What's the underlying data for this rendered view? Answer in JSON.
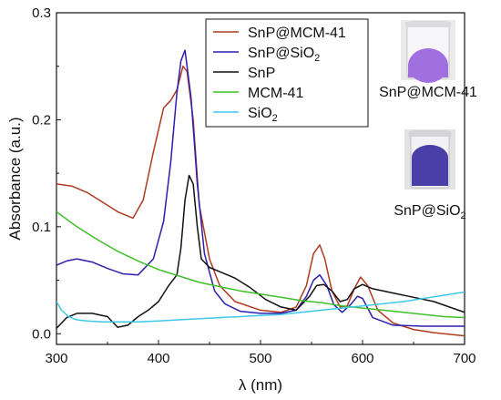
{
  "chart_data": {
    "type": "line",
    "xlabel_main": "λ",
    "xlabel_unit": " (nm)",
    "ylabel": "Absorbance (a.u.)",
    "xlim": [
      300,
      700
    ],
    "ylim": [
      -0.01,
      0.3
    ],
    "xticks": [
      300,
      400,
      500,
      600,
      700
    ],
    "yticks": [
      0.0,
      0.1,
      0.2,
      0.3
    ],
    "ytick_labels": [
      "0.0",
      "0.1",
      "0.2",
      "0.3"
    ],
    "legend_position": "top-center",
    "series": [
      {
        "name": "SnP@MCM-41",
        "name_base": "SnP@MCM-41",
        "name_sub": "",
        "color": "#b03a1e",
        "x": [
          300,
          315,
          330,
          345,
          360,
          375,
          385,
          395,
          405,
          412,
          418,
          424,
          428,
          434,
          440,
          450,
          460,
          475,
          500,
          520,
          535,
          545,
          552,
          558,
          563,
          570,
          578,
          585,
          592,
          598,
          605,
          615,
          630,
          650,
          670,
          700
        ],
        "y": [
          0.14,
          0.138,
          0.132,
          0.123,
          0.114,
          0.108,
          0.125,
          0.17,
          0.211,
          0.218,
          0.228,
          0.25,
          0.245,
          0.2,
          0.12,
          0.07,
          0.045,
          0.03,
          0.022,
          0.02,
          0.025,
          0.045,
          0.075,
          0.083,
          0.07,
          0.04,
          0.025,
          0.026,
          0.042,
          0.053,
          0.045,
          0.022,
          0.01,
          0.004,
          0.001,
          -0.002
        ]
      },
      {
        "name": "SnP@SiO2",
        "name_base": "SnP@SiO",
        "name_sub": "2",
        "color": "#2a1fb0",
        "x": [
          300,
          310,
          320,
          335,
          350,
          365,
          380,
          395,
          405,
          412,
          418,
          422,
          426,
          432,
          438,
          445,
          455,
          465,
          480,
          500,
          520,
          535,
          545,
          552,
          558,
          565,
          572,
          580,
          588,
          595,
          600,
          610,
          630,
          660,
          700
        ],
        "y": [
          0.064,
          0.068,
          0.07,
          0.067,
          0.061,
          0.056,
          0.055,
          0.07,
          0.105,
          0.16,
          0.225,
          0.255,
          0.265,
          0.22,
          0.14,
          0.075,
          0.04,
          0.028,
          0.021,
          0.019,
          0.019,
          0.022,
          0.035,
          0.05,
          0.055,
          0.045,
          0.027,
          0.02,
          0.027,
          0.035,
          0.033,
          0.015,
          0.008,
          0.007,
          0.007
        ]
      },
      {
        "name": "SnP",
        "name_base": "SnP",
        "name_sub": "",
        "color": "#111111",
        "x": [
          300,
          310,
          320,
          335,
          350,
          360,
          370,
          380,
          390,
          400,
          410,
          418,
          422,
          426,
          430,
          434,
          438,
          442,
          450,
          460,
          475,
          490,
          505,
          520,
          535,
          548,
          555,
          562,
          570,
          578,
          585,
          592,
          600,
          610,
          630,
          650,
          670,
          700
        ],
        "y": [
          0.005,
          0.015,
          0.019,
          0.019,
          0.016,
          0.006,
          0.008,
          0.016,
          0.022,
          0.03,
          0.045,
          0.055,
          0.08,
          0.125,
          0.148,
          0.14,
          0.1,
          0.07,
          0.062,
          0.058,
          0.052,
          0.043,
          0.032,
          0.025,
          0.022,
          0.035,
          0.045,
          0.046,
          0.04,
          0.03,
          0.032,
          0.042,
          0.046,
          0.042,
          0.038,
          0.034,
          0.03,
          0.02
        ]
      },
      {
        "name": "MCM-41",
        "name_base": "MCM-41",
        "name_sub": "",
        "color": "#3fbf2a",
        "x": [
          300,
          320,
          340,
          360,
          380,
          400,
          420,
          440,
          460,
          480,
          500,
          520,
          540,
          560,
          580,
          600,
          620,
          640,
          660,
          680,
          700
        ],
        "y": [
          0.114,
          0.1,
          0.088,
          0.077,
          0.068,
          0.06,
          0.054,
          0.048,
          0.044,
          0.04,
          0.037,
          0.034,
          0.031,
          0.029,
          0.026,
          0.024,
          0.022,
          0.02,
          0.018,
          0.016,
          0.015
        ]
      },
      {
        "name": "SiO2",
        "name_base": "SiO",
        "name_sub": "2",
        "color": "#3fc8e8",
        "x": [
          300,
          305,
          312,
          320,
          330,
          345,
          360,
          380,
          400,
          420,
          440,
          460,
          480,
          500,
          520,
          540,
          560,
          580,
          600,
          620,
          640,
          660,
          680,
          700
        ],
        "y": [
          0.03,
          0.022,
          0.016,
          0.013,
          0.012,
          0.011,
          0.011,
          0.011,
          0.012,
          0.013,
          0.014,
          0.015,
          0.016,
          0.017,
          0.018,
          0.02,
          0.022,
          0.024,
          0.026,
          0.028,
          0.03,
          0.033,
          0.036,
          0.039
        ]
      }
    ]
  },
  "photos": [
    {
      "label_base": "SnP@MCM-41",
      "label_sub": "",
      "powder_color": "#a070e0"
    },
    {
      "label_base": "SnP@SiO",
      "label_sub": "2",
      "powder_color": "#4a3fa8"
    }
  ]
}
